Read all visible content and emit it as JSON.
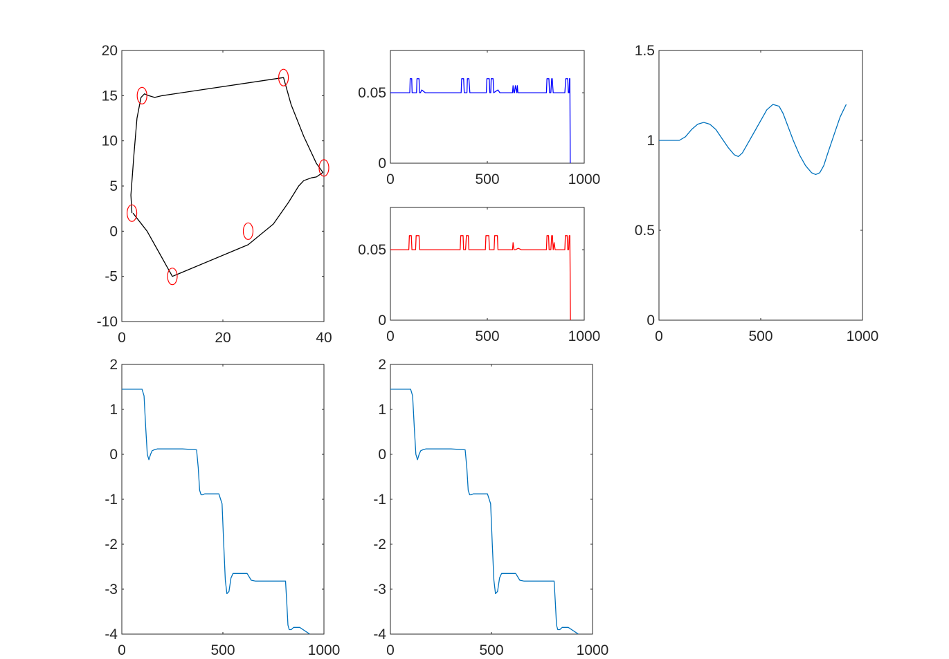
{
  "figure": {
    "background": "#ffffff",
    "axes_color": "#262626",
    "tick_font_size_note": "matlab-style"
  },
  "chart_data": [
    {
      "id": "path",
      "type": "line",
      "xlim": [
        0,
        40
      ],
      "ylim": [
        -10,
        20
      ],
      "xticks": [
        0,
        20,
        40
      ],
      "yticks": [
        -10,
        -5,
        0,
        5,
        10,
        15,
        20
      ],
      "grid": false,
      "series": [
        {
          "color": "#000000",
          "x": [
            2.0,
            1.8,
            2.4,
            3.0,
            3.8,
            4.5,
            5.3,
            6.5,
            8.0,
            32.0,
            33.5,
            36.0,
            38.5,
            39.8,
            38.5,
            37.5,
            36.0,
            35.0,
            33.0,
            30.0,
            25.0,
            10.0,
            7.5,
            5.0,
            2.2
          ],
          "y": [
            2.0,
            4.0,
            8.5,
            12.5,
            14.8,
            15.2,
            15.0,
            14.8,
            15.0,
            17.0,
            14.0,
            10.5,
            7.5,
            6.5,
            6.0,
            5.9,
            5.6,
            5.0,
            3.2,
            0.8,
            -1.5,
            -5.0,
            -2.5,
            0.0,
            2.0
          ]
        }
      ],
      "markers": {
        "color": "#ff0000",
        "x": [
          2,
          4,
          32,
          40,
          25,
          10
        ],
        "y": [
          2,
          15,
          17,
          7,
          0,
          -5
        ]
      }
    },
    {
      "id": "signal-blue",
      "type": "line",
      "xlim": [
        0,
        1000
      ],
      "ylim": [
        0,
        0.08
      ],
      "xticks": [
        0,
        500,
        1000
      ],
      "yticks": [
        0,
        0.05
      ],
      "ytick_labels": [
        "0",
        "0.05"
      ],
      "grid": false,
      "series": [
        {
          "color": "#0000ff",
          "x": [
            0,
            100,
            102,
            110,
            112,
            135,
            137,
            148,
            150,
            155,
            162,
            180,
            365,
            368,
            378,
            381,
            395,
            397,
            405,
            410,
            470,
            495,
            498,
            510,
            513,
            518,
            520,
            530,
            533,
            555,
            565,
            580,
            630,
            633,
            637,
            640,
            645,
            652,
            655,
            658,
            680,
            805,
            808,
            818,
            821,
            828,
            832,
            835,
            840,
            900,
            905,
            915,
            918,
            922,
            924,
            926,
            928
          ],
          "y": [
            0.05,
            0.05,
            0.06,
            0.06,
            0.05,
            0.05,
            0.06,
            0.06,
            0.05,
            0.05,
            0.052,
            0.05,
            0.05,
            0.06,
            0.06,
            0.05,
            0.05,
            0.06,
            0.06,
            0.05,
            0.05,
            0.05,
            0.06,
            0.06,
            0.05,
            0.05,
            0.06,
            0.06,
            0.05,
            0.052,
            0.05,
            0.05,
            0.05,
            0.055,
            0.05,
            0.05,
            0.055,
            0.05,
            0.055,
            0.05,
            0.05,
            0.05,
            0.06,
            0.06,
            0.05,
            0.05,
            0.06,
            0.06,
            0.05,
            0.05,
            0.06,
            0.06,
            0.05,
            0.05,
            0.06,
            0.06,
            0.0
          ]
        }
      ]
    },
    {
      "id": "signal-red",
      "type": "line",
      "xlim": [
        0,
        1000
      ],
      "ylim": [
        0,
        0.08
      ],
      "xticks": [
        0,
        500,
        1000
      ],
      "yticks": [
        0,
        0.05
      ],
      "ytick_labels": [
        "0",
        "0.05"
      ],
      "grid": false,
      "series": [
        {
          "color": "#ff0000",
          "x": [
            0,
            95,
            98,
            108,
            111,
            130,
            133,
            148,
            151,
            360,
            363,
            375,
            378,
            388,
            392,
            402,
            405,
            490,
            493,
            508,
            511,
            535,
            538,
            552,
            555,
            630,
            633,
            638,
            645,
            660,
            675,
            805,
            808,
            816,
            819,
            828,
            832,
            836,
            840,
            845,
            850,
            900,
            903,
            912,
            915,
            920,
            923,
            926,
            929
          ],
          "y": [
            0.05,
            0.05,
            0.06,
            0.06,
            0.05,
            0.05,
            0.06,
            0.06,
            0.05,
            0.05,
            0.06,
            0.06,
            0.05,
            0.05,
            0.06,
            0.06,
            0.05,
            0.05,
            0.06,
            0.06,
            0.05,
            0.05,
            0.06,
            0.06,
            0.05,
            0.05,
            0.055,
            0.05,
            0.05,
            0.051,
            0.05,
            0.05,
            0.06,
            0.06,
            0.05,
            0.05,
            0.06,
            0.06,
            0.05,
            0.055,
            0.05,
            0.05,
            0.06,
            0.06,
            0.05,
            0.05,
            0.06,
            0.06,
            0.0
          ]
        }
      ]
    },
    {
      "id": "velocity",
      "type": "line",
      "xlim": [
        0,
        1000
      ],
      "ylim": [
        0,
        1.5
      ],
      "xticks": [
        0,
        500,
        1000
      ],
      "yticks": [
        0,
        0.5,
        1,
        1.5
      ],
      "grid": false,
      "series": [
        {
          "color": "#0072bd",
          "x": [
            0,
            50,
            100,
            130,
            160,
            190,
            220,
            250,
            280,
            310,
            340,
            370,
            390,
            410,
            440,
            470,
            500,
            530,
            560,
            590,
            610,
            630,
            660,
            690,
            720,
            750,
            770,
            790,
            810,
            830,
            860,
            890,
            920
          ],
          "y": [
            1.0,
            1.0,
            1.0,
            1.02,
            1.06,
            1.09,
            1.1,
            1.09,
            1.06,
            1.01,
            0.96,
            0.92,
            0.91,
            0.93,
            0.99,
            1.05,
            1.11,
            1.17,
            1.2,
            1.19,
            1.15,
            1.09,
            1.0,
            0.92,
            0.86,
            0.82,
            0.81,
            0.82,
            0.86,
            0.93,
            1.03,
            1.13,
            1.2
          ]
        }
      ]
    },
    {
      "id": "heading-a",
      "type": "line",
      "xlim": [
        0,
        1000
      ],
      "ylim": [
        -4,
        2
      ],
      "xticks": [
        0,
        500,
        1000
      ],
      "yticks": [
        -4,
        -3,
        -2,
        -1,
        0,
        1,
        2
      ],
      "grid": false,
      "series": [
        {
          "color": "#0072bd",
          "x": [
            0,
            100,
            110,
            118,
            126,
            134,
            142,
            150,
            160,
            175,
            200,
            300,
            370,
            378,
            385,
            392,
            400,
            410,
            420,
            480,
            496,
            504,
            512,
            520,
            530,
            540,
            550,
            565,
            580,
            620,
            640,
            660,
            700,
            810,
            816,
            822,
            828,
            838,
            850,
            880,
            930
          ],
          "y": [
            1.45,
            1.45,
            1.3,
            0.6,
            0.0,
            -0.12,
            0.0,
            0.08,
            0.1,
            0.12,
            0.12,
            0.12,
            0.1,
            -0.3,
            -0.8,
            -0.9,
            -0.9,
            -0.88,
            -0.88,
            -0.88,
            -1.1,
            -2.0,
            -2.8,
            -3.1,
            -3.05,
            -2.75,
            -2.65,
            -2.65,
            -2.65,
            -2.65,
            -2.8,
            -2.82,
            -2.82,
            -2.82,
            -3.3,
            -3.8,
            -3.9,
            -3.9,
            -3.85,
            -3.85,
            -4.0
          ]
        }
      ]
    },
    {
      "id": "heading-b",
      "type": "line",
      "xlim": [
        0,
        1000
      ],
      "ylim": [
        -4,
        2
      ],
      "xticks": [
        0,
        500,
        1000
      ],
      "yticks": [
        -4,
        -3,
        -2,
        -1,
        0,
        1,
        2
      ],
      "grid": false,
      "series": [
        {
          "color": "#0072bd",
          "x": [
            0,
            100,
            110,
            118,
            126,
            134,
            142,
            150,
            160,
            175,
            200,
            300,
            370,
            378,
            385,
            392,
            400,
            410,
            420,
            480,
            496,
            504,
            512,
            520,
            530,
            540,
            550,
            565,
            580,
            620,
            640,
            660,
            700,
            810,
            816,
            822,
            828,
            838,
            850,
            880,
            930
          ],
          "y": [
            1.45,
            1.45,
            1.3,
            0.6,
            0.0,
            -0.12,
            0.0,
            0.08,
            0.1,
            0.12,
            0.12,
            0.12,
            0.1,
            -0.3,
            -0.8,
            -0.9,
            -0.9,
            -0.88,
            -0.88,
            -0.88,
            -1.1,
            -2.0,
            -2.8,
            -3.1,
            -3.05,
            -2.75,
            -2.65,
            -2.65,
            -2.65,
            -2.65,
            -2.8,
            -2.82,
            -2.82,
            -2.82,
            -3.3,
            -3.8,
            -3.9,
            -3.9,
            -3.85,
            -3.85,
            -4.0
          ]
        }
      ]
    }
  ]
}
